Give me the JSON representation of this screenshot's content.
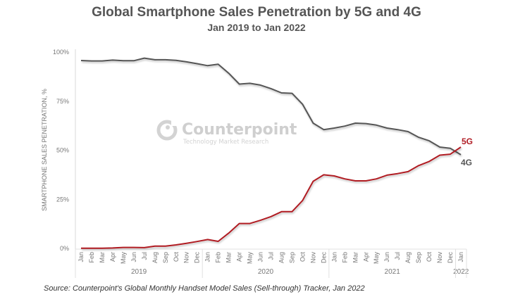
{
  "chart_data": {
    "type": "line",
    "title": "Global Smartphone Sales Penetration by 5G and 4G",
    "subtitle": "Jan 2019 to Jan 2022",
    "xlabel": "",
    "ylabel": "SMARTPHONE SALES PENETRATION, %",
    "ylim": [
      0,
      100
    ],
    "yticks": [
      "0%",
      "25%",
      "50%",
      "75%",
      "100%"
    ],
    "ytick_values": [
      0,
      25,
      50,
      75,
      100
    ],
    "grid": false,
    "x": [
      "Jan",
      "Feb",
      "Mar",
      "Apr",
      "May",
      "Jun",
      "Jul",
      "Aug",
      "Sep",
      "Oct",
      "Nov",
      "Dec",
      "Jan",
      "Feb",
      "Mar",
      "Apr",
      "May",
      "Jun",
      "Jul",
      "Aug",
      "Sep",
      "Oct",
      "Nov",
      "Dec",
      "Jan",
      "Feb",
      "Mar",
      "Apr",
      "May",
      "Jun",
      "Jul",
      "Aug",
      "Sep",
      "Oct",
      "Nov",
      "Dec",
      "Jan"
    ],
    "year_groups": [
      {
        "label": "2019",
        "months": 12
      },
      {
        "label": "2020",
        "months": 12
      },
      {
        "label": "2021",
        "months": 12
      },
      {
        "label": "2022",
        "months": 1
      }
    ],
    "series": [
      {
        "name": "4G",
        "color": "#555555",
        "values": [
          95.7,
          95.5,
          95.5,
          95.9,
          95.6,
          95.6,
          96.9,
          96.1,
          96.1,
          95.8,
          95.0,
          94.1,
          93.1,
          93.8,
          89.2,
          83.7,
          84.1,
          83.2,
          81.4,
          79.2,
          79.0,
          73.4,
          63.8,
          60.5,
          61.3,
          62.3,
          63.8,
          63.6,
          62.8,
          61.3,
          60.5,
          59.5,
          56.6,
          54.8,
          51.6,
          51.0,
          47.7
        ]
      },
      {
        "name": "5G",
        "color": "#b01c24",
        "values": [
          0.1,
          0.1,
          0.1,
          0.2,
          0.5,
          0.5,
          0.4,
          1.2,
          1.2,
          1.8,
          2.6,
          3.5,
          4.5,
          3.6,
          7.8,
          12.7,
          12.7,
          14.3,
          16.2,
          18.7,
          18.7,
          24.4,
          34.2,
          37.5,
          36.9,
          35.4,
          34.4,
          34.4,
          35.4,
          37.3,
          38.1,
          39.1,
          42.2,
          44.3,
          47.5,
          48.0,
          51.6
        ]
      }
    ],
    "end_labels": [
      "5G",
      "4G"
    ],
    "legend": "end-of-line labels (right)"
  },
  "watermark": {
    "brand": "Counterpoint",
    "tagline": "Technology Market Research"
  },
  "source": "Source: Counterpoint's Global Monthly Handset Model Sales (Sell-through) Tracker, Jan 2022"
}
